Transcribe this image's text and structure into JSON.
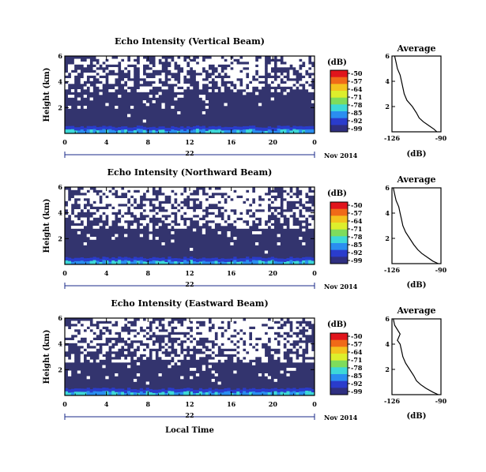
{
  "figure": {
    "xaxis_title": "Local Time",
    "date_label": "Nov 2014",
    "day_label": "22"
  },
  "chart_data": [
    {
      "type": "heatmap",
      "title": "Echo Intensity (Vertical Beam)",
      "ylabel": "Height (km)",
      "xlabel": "Local Time",
      "x_ticks": [
        "0",
        "4",
        "8",
        "12",
        "16",
        "20",
        "0"
      ],
      "y_ticks": [
        "6",
        "4",
        "2"
      ],
      "xlim": [
        0,
        24
      ],
      "ylim": [
        0,
        6
      ],
      "colorbar": {
        "label": "(dB)",
        "ticks": [
          "-50",
          "-57",
          "-64",
          "-71",
          "-78",
          "-85",
          "-92",
          "-99"
        ],
        "colors": [
          "#e0141c",
          "#f06a18",
          "#f4c21e",
          "#ddee2c",
          "#7edc5c",
          "#3dd8d8",
          "#2a8ef0",
          "#2a3ccc",
          "#2f2f80"
        ]
      },
      "mask_noise_top_km": 3.2,
      "mask_density_top": 0.55,
      "average_profile": {
        "title": "Average",
        "xlabel": "(dB)",
        "x_ticks": [
          "-126",
          "-90"
        ],
        "y_ticks": [
          "6",
          "4",
          "2"
        ],
        "xlim": [
          -126,
          -90
        ],
        "ylim": [
          0,
          6
        ],
        "height_km": [
          0.0,
          0.2,
          0.5,
          0.8,
          1.1,
          1.5,
          2.0,
          2.5,
          3.0,
          3.5,
          4.0,
          4.5,
          5.0,
          5.5,
          6.0
        ],
        "value_db": [
          -93,
          -95,
          -99,
          -103,
          -106,
          -108,
          -111,
          -115,
          -117,
          -118,
          -119,
          -120,
          -122,
          -123,
          -124
        ]
      }
    },
    {
      "type": "heatmap",
      "title": "Echo Intensity (Northward Beam)",
      "ylabel": "Height (km)",
      "xlabel": "Local Time",
      "x_ticks": [
        "0",
        "4",
        "8",
        "12",
        "16",
        "20",
        "0"
      ],
      "y_ticks": [
        "6",
        "4",
        "2"
      ],
      "xlim": [
        0,
        24
      ],
      "ylim": [
        0,
        6
      ],
      "colorbar": {
        "label": "(dB)",
        "ticks": [
          "-50",
          "-57",
          "-64",
          "-71",
          "-78",
          "-85",
          "-92",
          "-99"
        ],
        "colors": [
          "#e0141c",
          "#f06a18",
          "#f4c21e",
          "#ddee2c",
          "#7edc5c",
          "#3dd8d8",
          "#2a8ef0",
          "#2a3ccc",
          "#2f2f80"
        ]
      },
      "mask_noise_top_km": 2.8,
      "mask_density_top": 0.6,
      "average_profile": {
        "title": "Average",
        "xlabel": "(dB)",
        "x_ticks": [
          "-126",
          "-90"
        ],
        "y_ticks": [
          "6",
          "4",
          "2"
        ],
        "xlim": [
          -126,
          -90
        ],
        "ylim": [
          0,
          6
        ],
        "height_km": [
          0.0,
          0.2,
          0.5,
          0.8,
          1.1,
          1.5,
          2.0,
          2.5,
          3.0,
          3.5,
          4.0,
          4.5,
          5.0,
          5.5,
          6.0
        ],
        "value_db": [
          -92,
          -96,
          -100,
          -104,
          -107,
          -110,
          -113,
          -116,
          -118,
          -119,
          -120,
          -121,
          -123,
          -124,
          -125
        ]
      }
    },
    {
      "type": "heatmap",
      "title": "Echo Intensity (Eastward Beam)",
      "ylabel": "Height (km)",
      "xlabel": "Local Time",
      "x_ticks": [
        "0",
        "4",
        "8",
        "12",
        "16",
        "20",
        "0"
      ],
      "y_ticks": [
        "6",
        "4",
        "2"
      ],
      "xlim": [
        0,
        24
      ],
      "ylim": [
        0,
        6
      ],
      "colorbar": {
        "label": "(dB)",
        "ticks": [
          "-50",
          "-57",
          "-64",
          "-71",
          "-78",
          "-85",
          "-92",
          "-99"
        ],
        "colors": [
          "#e0141c",
          "#f06a18",
          "#f4c21e",
          "#ddee2c",
          "#7edc5c",
          "#3dd8d8",
          "#2a8ef0",
          "#2a3ccc",
          "#2f2f80"
        ]
      },
      "mask_noise_top_km": 2.6,
      "mask_density_top": 0.62,
      "average_profile": {
        "title": "Average",
        "xlabel": "(dB)",
        "x_ticks": [
          "-126",
          "-90"
        ],
        "y_ticks": [
          "6",
          "4",
          "2"
        ],
        "xlim": [
          -126,
          -90
        ],
        "ylim": [
          0,
          6
        ],
        "height_km": [
          0.0,
          0.2,
          0.5,
          0.8,
          1.1,
          1.5,
          2.0,
          2.5,
          3.0,
          3.5,
          4.0,
          4.3,
          4.8,
          5.5,
          6.0
        ],
        "value_db": [
          -92,
          -96,
          -101,
          -105,
          -108,
          -110,
          -113,
          -116,
          -118,
          -119,
          -120,
          -122,
          -120,
          -124,
          -125
        ]
      }
    }
  ]
}
